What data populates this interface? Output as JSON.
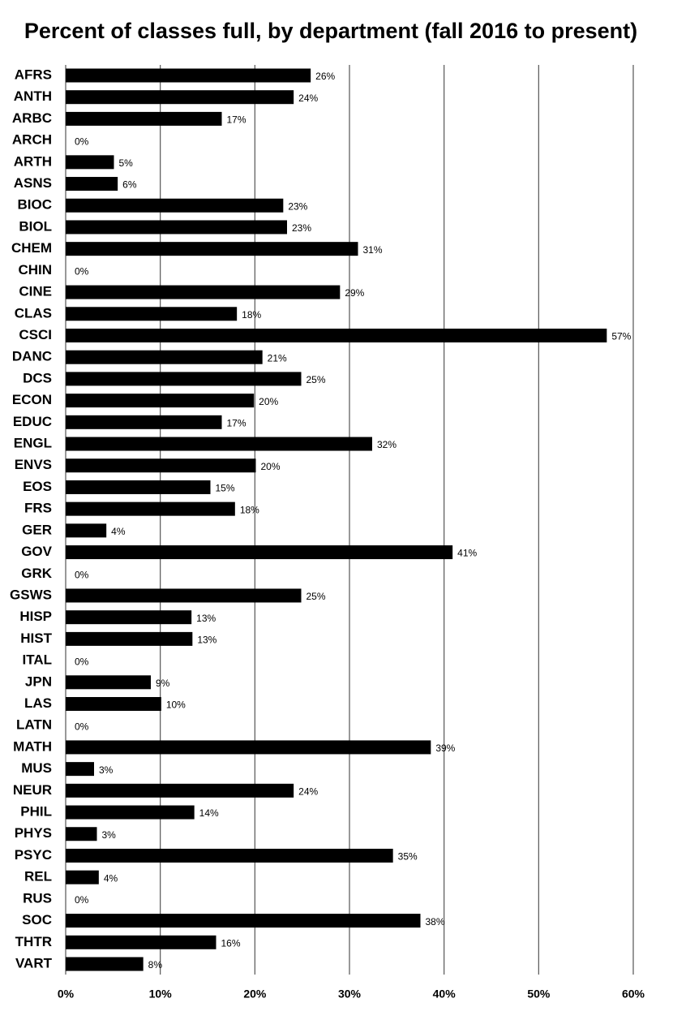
{
  "chart_data": {
    "type": "hbar",
    "title": "Percent of classes full, by department (fall 2016 to present)",
    "categories": [
      "AFRS",
      "ANTH",
      "ARBC",
      "ARCH",
      "ARTH",
      "ASNS",
      "BIOC",
      "BIOL",
      "CHEM",
      "CHIN",
      "CINE",
      "CLAS",
      "CSCI",
      "DANC",
      "DCS",
      "ECON",
      "EDUC",
      "ENGL",
      "ENVS",
      "EOS",
      "FRS",
      "GER",
      "GOV",
      "GRK",
      "GSWS",
      "HISP",
      "HIST",
      "ITAL",
      "JPN",
      "LAS",
      "LATN",
      "MATH",
      "MUS",
      "NEUR",
      "PHIL",
      "PHYS",
      "PSYC",
      "REL",
      "RUS",
      "SOC",
      "THTR",
      "VART"
    ],
    "values": [
      25.9,
      24.1,
      16.5,
      0,
      5.1,
      5.5,
      23,
      23.4,
      30.9,
      0,
      29,
      18.1,
      57.2,
      20.8,
      24.9,
      19.9,
      16.5,
      32.4,
      20.1,
      15.3,
      17.9,
      4.3,
      40.9,
      0,
      24.9,
      13.3,
      13.4,
      0,
      9,
      10.1,
      0,
      38.6,
      3,
      24.1,
      13.6,
      3.3,
      34.6,
      3.5,
      0,
      37.5,
      15.9,
      8.2
    ],
    "value_labels": [
      "26%",
      "24%",
      "17%",
      "0%",
      "5%",
      "6%",
      "23%",
      "23%",
      "31%",
      "0%",
      "29%",
      "18%",
      "57%",
      "21%",
      "25%",
      "20%",
      "17%",
      "32%",
      "20%",
      "15%",
      "18%",
      "4%",
      "41%",
      "0%",
      "25%",
      "13%",
      "13%",
      "0%",
      "9%",
      "10%",
      "0%",
      "39%",
      "3%",
      "24%",
      "14%",
      "3%",
      "35%",
      "4%",
      "0%",
      "38%",
      "16%",
      "8%"
    ],
    "color": "#000000",
    "xlim": [
      0,
      60
    ],
    "xticks": [
      {
        "value": 0,
        "label": "0%"
      },
      {
        "value": 10,
        "label": "10%"
      },
      {
        "value": 20,
        "label": "20%"
      },
      {
        "value": 30,
        "label": "30%"
      },
      {
        "value": 40,
        "label": "40%"
      },
      {
        "value": 50,
        "label": "50%"
      },
      {
        "value": 60,
        "label": "60%"
      }
    ],
    "grid": true
  }
}
